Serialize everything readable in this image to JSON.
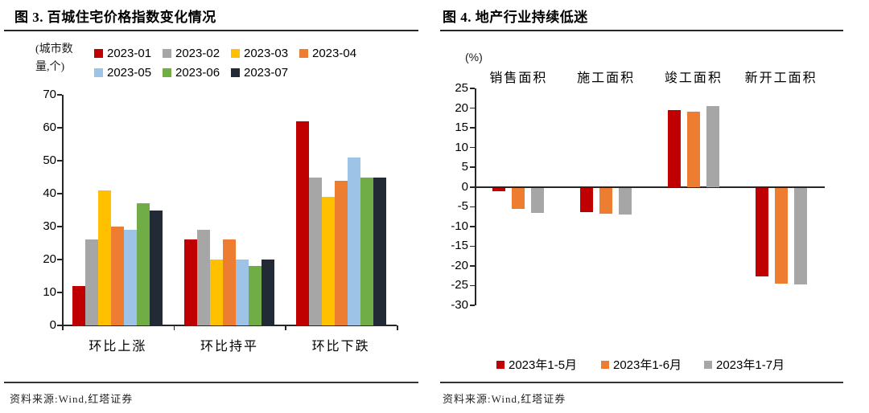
{
  "figure_left": {
    "title": "图 3. 百城住宅价格指数变化情况",
    "unit_line1": "(城市数",
    "unit_line2": "量,个)",
    "source": "资料来源:Wind,红塔证券"
  },
  "figure_right": {
    "title": "图 4. 地产行业持续低迷",
    "unit": "(%)",
    "source": "资料来源:Wind,红塔证券"
  },
  "colors": {
    "red": "#C00000",
    "gray": "#A6A6A6",
    "yellow": "#FFC000",
    "orange": "#ED7D31",
    "light_blue": "#9DC3E6",
    "green": "#70AD47",
    "dark_navy": "#222A35",
    "axis": "#262626"
  },
  "chart_data": [
    {
      "type": "bar",
      "title": "图 3. 百城住宅价格指数变化情况",
      "ylabel": "城市数量(个)",
      "categories": [
        "环比上涨",
        "环比持平",
        "环比下跌"
      ],
      "series": [
        {
          "name": "2023-01",
          "color": "#C00000",
          "values": [
            12,
            26,
            62
          ]
        },
        {
          "name": "2023-02",
          "color": "#A6A6A6",
          "values": [
            26,
            29,
            45
          ]
        },
        {
          "name": "2023-03",
          "color": "#FFC000",
          "values": [
            41,
            20,
            39
          ]
        },
        {
          "name": "2023-04",
          "color": "#ED7D31",
          "values": [
            30,
            26,
            44
          ]
        },
        {
          "name": "2023-05",
          "color": "#9DC3E6",
          "values": [
            29,
            20,
            51
          ]
        },
        {
          "name": "2023-06",
          "color": "#70AD47",
          "values": [
            37,
            18,
            45
          ]
        },
        {
          "name": "2023-07",
          "color": "#222A35",
          "values": [
            35,
            20,
            45
          ]
        }
      ],
      "ylim": [
        0,
        70
      ],
      "ytick_step": 10,
      "grid": false,
      "legend_position": "top",
      "category_label_position": "bottom"
    },
    {
      "type": "bar",
      "title": "图 4. 地产行业持续低迷",
      "ylabel": "%",
      "categories": [
        "销售面积",
        "施工面积",
        "竣工面积",
        "新开工面积"
      ],
      "series": [
        {
          "name": "2023年1-5月",
          "color": "#C00000",
          "values": [
            -0.9,
            -6.2,
            19.6,
            -22.6
          ]
        },
        {
          "name": "2023年1-6月",
          "color": "#ED7D31",
          "values": [
            -5.3,
            -6.6,
            19.0,
            -24.3
          ]
        },
        {
          "name": "2023年1-7月",
          "color": "#A6A6A6",
          "values": [
            -6.5,
            -6.8,
            20.5,
            -24.5
          ]
        }
      ],
      "ylim": [
        -30,
        25
      ],
      "ytick_step": 5,
      "grid": false,
      "legend_position": "bottom",
      "category_label_position": "top"
    }
  ]
}
